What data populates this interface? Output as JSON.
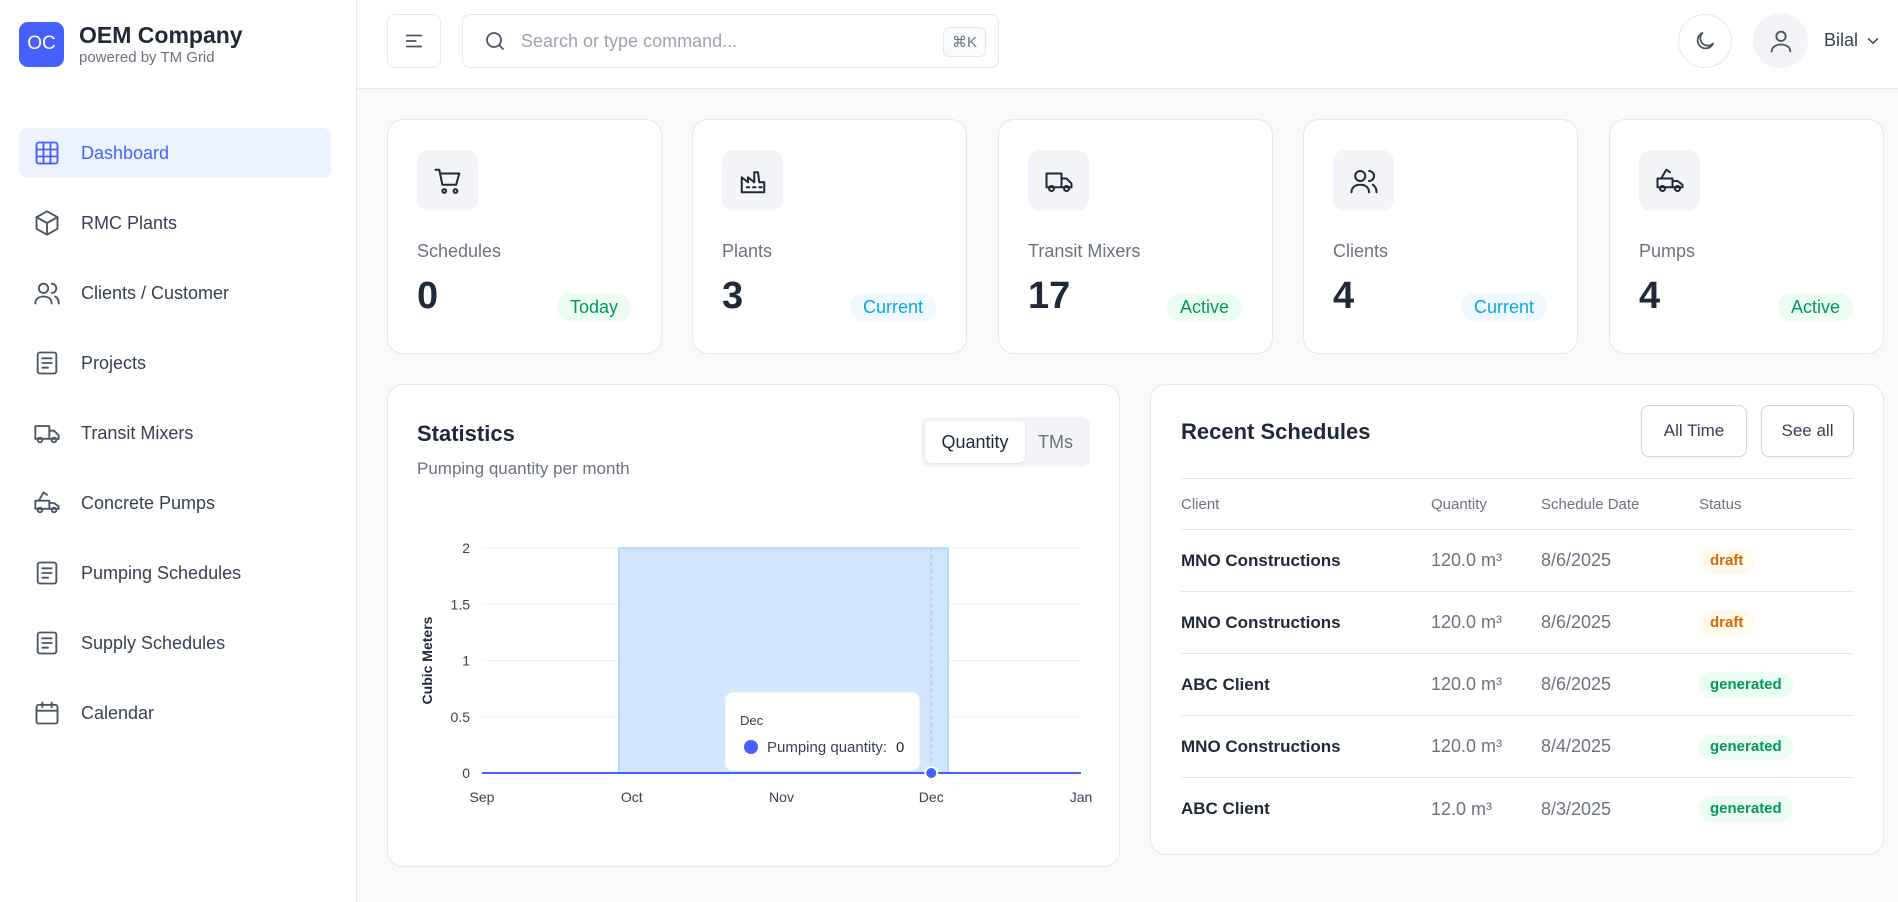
{
  "brand": {
    "logo": "OC",
    "name": "OEM Company",
    "sub": "powered by TM Grid"
  },
  "nav": [
    {
      "label": "Dashboard",
      "icon": "grid-icon"
    },
    {
      "label": "RMC Plants",
      "icon": "box-icon"
    },
    {
      "label": "Clients / Customer",
      "icon": "users-icon"
    },
    {
      "label": "Projects",
      "icon": "document-icon"
    },
    {
      "label": "Transit Mixers",
      "icon": "truck-icon"
    },
    {
      "label": "Concrete Pumps",
      "icon": "pump-truck-icon"
    },
    {
      "label": "Pumping Schedules",
      "icon": "document-icon"
    },
    {
      "label": "Supply Schedules",
      "icon": "document-icon"
    },
    {
      "label": "Calendar",
      "icon": "calendar-icon"
    }
  ],
  "header": {
    "search_placeholder": "Search or type command...",
    "shortcut": "⌘K",
    "user_name": "Bilal"
  },
  "stats": [
    {
      "label": "Schedules",
      "value": "0",
      "badge": "Today",
      "badge_color": "#039855",
      "icon": "cart-icon"
    },
    {
      "label": "Plants",
      "value": "3",
      "badge": "Current",
      "badge_color": "#0ba5ec",
      "icon": "factory-icon"
    },
    {
      "label": "Transit Mixers",
      "value": "17",
      "badge": "Active",
      "badge_color": "#039855",
      "icon": "truck-icon"
    },
    {
      "label": "Clients",
      "value": "4",
      "badge": "Current",
      "badge_color": "#0ba5ec",
      "icon": "users-icon"
    },
    {
      "label": "Pumps",
      "value": "4",
      "badge": "Active",
      "badge_color": "#039855",
      "icon": "pump-truck-icon"
    }
  ],
  "statistics": {
    "title": "Statistics",
    "subtitle": "Pumping quantity per month",
    "tabs": [
      "Quantity",
      "TMs"
    ],
    "tooltip": {
      "title": "Dec",
      "label": "Pumping quantity:",
      "value": "0"
    }
  },
  "chart_data": {
    "type": "line",
    "x": [
      "Sep",
      "Oct",
      "Nov",
      "Dec",
      "Jan"
    ],
    "series": [
      {
        "name": "Pumping quantity",
        "values": [
          0,
          0,
          0,
          0,
          0
        ],
        "color": "#465fff"
      }
    ],
    "ylabel": "Cubic Meters",
    "yticks": [
      "0",
      "0.5",
      "1",
      "1.5",
      "2"
    ],
    "ylim": [
      0,
      2
    ],
    "highlight_range": [
      "Oct",
      "Dec"
    ],
    "grid": true
  },
  "recent": {
    "title": "Recent Schedules",
    "buttons": [
      "All Time",
      "See all"
    ],
    "columns": [
      "Client",
      "Quantity",
      "Schedule Date",
      "Status"
    ],
    "rows": [
      {
        "client": "MNO Constructions",
        "quantity": "120.0 m³",
        "date": "8/6/2025",
        "status": "draft"
      },
      {
        "client": "MNO Constructions",
        "quantity": "120.0 m³",
        "date": "8/6/2025",
        "status": "draft"
      },
      {
        "client": "ABC Client",
        "quantity": "120.0 m³",
        "date": "8/6/2025",
        "status": "generated"
      },
      {
        "client": "MNO Constructions",
        "quantity": "120.0 m³",
        "date": "8/4/2025",
        "status": "generated"
      },
      {
        "client": "ABC Client",
        "quantity": "12.0 m³",
        "date": "8/3/2025",
        "status": "generated"
      }
    ]
  }
}
